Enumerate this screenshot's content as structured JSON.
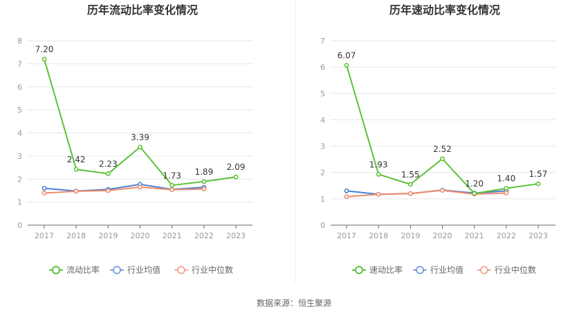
{
  "source_text": "数据来源：恒生聚源",
  "chart_data": [
    {
      "type": "line",
      "title": "历年流动比率变化情况",
      "categories": [
        "2017",
        "2018",
        "2019",
        "2020",
        "2021",
        "2022",
        "2023"
      ],
      "ylim": [
        0,
        8
      ],
      "yticks": [
        0,
        1,
        2,
        3,
        4,
        5,
        6,
        7,
        8
      ],
      "grid": true,
      "legend_position": "bottom",
      "series": [
        {
          "name": "流动比率",
          "color": "#5bc236",
          "values": [
            7.2,
            2.42,
            2.23,
            3.39,
            1.73,
            1.89,
            2.09
          ],
          "labels": [
            "7.20",
            "2.42",
            "2.23",
            "3.39",
            "1.73",
            "1.89",
            "2.09"
          ]
        },
        {
          "name": "行业均值",
          "color": "#4a7fd4",
          "values": [
            1.6,
            1.48,
            1.55,
            1.77,
            1.55,
            1.64,
            null
          ]
        },
        {
          "name": "行业中位数",
          "color": "#f08a6a",
          "values": [
            1.39,
            1.47,
            1.5,
            1.65,
            1.54,
            1.57,
            null
          ]
        }
      ]
    },
    {
      "type": "line",
      "title": "历年速动比率变化情况",
      "categories": [
        "2017",
        "2018",
        "2019",
        "2020",
        "2021",
        "2022",
        "2023"
      ],
      "ylim": [
        0,
        7
      ],
      "yticks": [
        0,
        1,
        2,
        3,
        4,
        5,
        6,
        7
      ],
      "grid": true,
      "legend_position": "bottom",
      "series": [
        {
          "name": "速动比率",
          "color": "#5bc236",
          "values": [
            6.07,
            1.93,
            1.55,
            2.52,
            1.2,
            1.4,
            1.57
          ],
          "labels": [
            "6.07",
            "1.93",
            "1.55",
            "2.52",
            "1.20",
            "1.40",
            "1.57"
          ]
        },
        {
          "name": "行业均值",
          "color": "#4a7fd4",
          "values": [
            1.3,
            1.17,
            1.2,
            1.33,
            1.22,
            1.3,
            null
          ]
        },
        {
          "name": "行业中位数",
          "color": "#f08a6a",
          "values": [
            1.08,
            1.17,
            1.2,
            1.32,
            1.18,
            1.22,
            null
          ]
        }
      ]
    }
  ]
}
